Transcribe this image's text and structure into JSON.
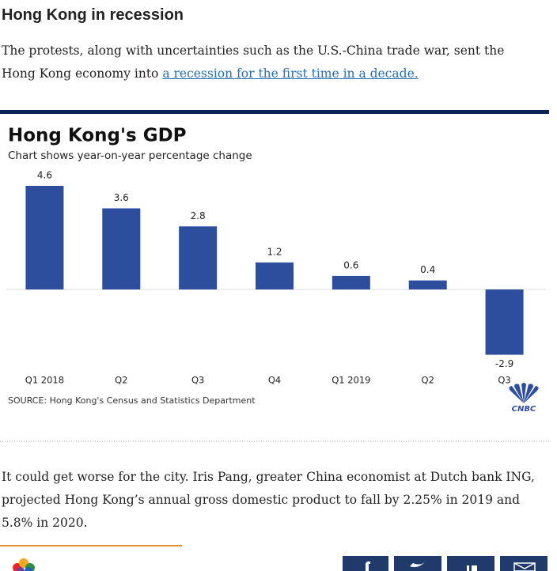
{
  "header": {
    "title": "Hong Kong in recession"
  },
  "intro": {
    "text": "The protests, along with uncertainties such as the U.S.-China trade war, sent the Hong Kong economy into ",
    "link": "a recession for the first time in a decade."
  },
  "chart_data": {
    "type": "bar",
    "title": "Hong Kong's GDP",
    "subtitle": "Chart shows year-on-year percentage change",
    "categories": [
      "Q1 2018",
      "Q2",
      "Q3",
      "Q4",
      "Q1 2019",
      "Q2",
      "Q3"
    ],
    "values": [
      4.6,
      3.6,
      2.8,
      1.2,
      0.6,
      0.4,
      -2.9
    ],
    "color": "#2d4e9c",
    "source": "SOURCE: Hong Kong's Census and Statistics Department",
    "logo_text": "CNBC"
  },
  "body": {
    "text": "It could get worse for the city. Iris Pang, greater China economist at Dutch bank ING, projected Hong Kong’s annual gross domestic product to fall by 2.25% in 2019 and 5.8% in 2020."
  }
}
